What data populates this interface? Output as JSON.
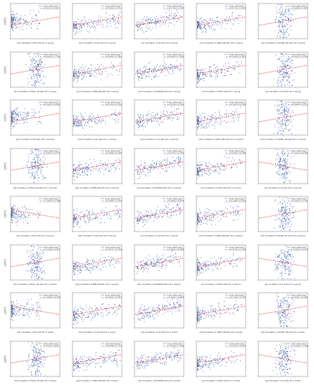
{
  "figure": {
    "legend_scatter": "•",
    "legend_line": "Linear relationship",
    "point_color": "#2b4a9c",
    "fit_color": "#e23a3a"
  },
  "chart_data": [
    {
      "type": "scatter",
      "row": 0,
      "col": 0,
      "caption": "(a1) Correlation of PD with LST in spring",
      "ylabel": "LST/°C",
      "equation": "y=0.015x+21.2664"
    },
    {
      "type": "scatter",
      "row": 0,
      "col": 1,
      "caption": "(b1) Correlation of LPI with LST in spring",
      "ylabel": "",
      "equation": "y=0.0065x+21.879"
    },
    {
      "type": "scatter",
      "row": 0,
      "col": 2,
      "caption": "(c1) Correlation of LSI with LST in spring",
      "ylabel": "",
      "equation": "y=0.2714x+21.3997"
    },
    {
      "type": "scatter",
      "row": 0,
      "col": 3,
      "caption": "(d1) Correlation of AREA_MN with LST in spring",
      "ylabel": "",
      "equation": "y=0.0711x+22.2024"
    },
    {
      "type": "scatter",
      "row": 0,
      "col": 4,
      "caption": "(e1) Correlation of SHAPE_AM with LST in spring",
      "ylabel": "",
      "equation": "y=0.1890x+21.6847"
    },
    {
      "type": "scatter",
      "row": 1,
      "col": 0,
      "caption": "(f1) Correlation of FRAC_AM with LST in spring",
      "ylabel": "LST/°C",
      "equation": "y=8.9656x+11.7140"
    },
    {
      "type": "scatter",
      "row": 1,
      "col": 1,
      "caption": "(g1) Correlation of ENN_MN with LST in spring",
      "ylabel": "",
      "equation": "y=0.0045x+21.2914"
    },
    {
      "type": "scatter",
      "row": 1,
      "col": 2,
      "caption": "(h1) Correlation of DIVISION with LST in spring",
      "ylabel": "",
      "equation": "y=9.4892x+13.4362"
    },
    {
      "type": "scatter",
      "row": 1,
      "col": 3,
      "caption": "(i1) Correlation of SPLIT with LST in spring",
      "ylabel": "",
      "equation": "y=0.0056x+21.8871"
    },
    {
      "type": "scatter",
      "row": 1,
      "col": 4,
      "caption": "(j1) Correlation of AI with LST in spring",
      "ylabel": "",
      "equation": "y=0.0281x+19.1463"
    },
    {
      "type": "scatter",
      "row": 2,
      "col": 0,
      "caption": "(a2) Correlation of PD with LST in summer",
      "ylabel": "LST/°C",
      "equation": "y=0.0005x+36.4583"
    },
    {
      "type": "scatter",
      "row": 2,
      "col": 1,
      "caption": "(b2) Correlation of LPI with LST in summer",
      "ylabel": "",
      "equation": "y=0.0141x+35.3302"
    },
    {
      "type": "scatter",
      "row": 2,
      "col": 2,
      "caption": "(c2) Correlation of LSI with LST in summer",
      "ylabel": "",
      "equation": "y=0.2919x+35.1614"
    },
    {
      "type": "scatter",
      "row": 2,
      "col": 3,
      "caption": "(d2) Correlation of AREA_MN with LST in summer",
      "ylabel": "",
      "equation": "y=0.1067x+36.3285"
    },
    {
      "type": "scatter",
      "row": 2,
      "col": 4,
      "caption": "(e2) Correlation of SHAPE_AM with LST in summer",
      "ylabel": "",
      "equation": "y=0.2944x+35.6711"
    },
    {
      "type": "scatter",
      "row": 3,
      "col": 0,
      "caption": "(f2) Correlation of FRAC_AM with LST in summer",
      "ylabel": "LST/°C",
      "equation": "y=9.2647x+26.9274"
    },
    {
      "type": "scatter",
      "row": 3,
      "col": 1,
      "caption": "(g2) Correlation of ENN_MN with LST in summer",
      "ylabel": "",
      "equation": "y=0.0098x+35.1945"
    },
    {
      "type": "scatter",
      "row": 3,
      "col": 2,
      "caption": "(h2) Correlation of DIVISION with LST in summer",
      "ylabel": "",
      "equation": "y=5.6772x+31.2475"
    },
    {
      "type": "scatter",
      "row": 3,
      "col": 3,
      "caption": "(i2) Correlation of SPLIT with LST in summer",
      "ylabel": "",
      "equation": "y=0.0054x+36.1885"
    },
    {
      "type": "scatter",
      "row": 3,
      "col": 4,
      "caption": "(j2) Correlation of AI with LST in summer",
      "ylabel": "",
      "equation": "y=-0.0214x+38.2941"
    },
    {
      "type": "scatter",
      "row": 4,
      "col": 0,
      "caption": "(a3) Correlation of PD with LST in autumn",
      "ylabel": "LST/°C",
      "equation": "y=-0.0004x+23.3690"
    },
    {
      "type": "scatter",
      "row": 4,
      "col": 1,
      "caption": "(b3) Correlation of LPI with LST in autumn",
      "ylabel": "",
      "equation": "y=0.0094x+22.2401"
    },
    {
      "type": "scatter",
      "row": 4,
      "col": 2,
      "caption": "(c3) Correlation of LSI with LST in autumn",
      "ylabel": "",
      "equation": "y=0.5806x+20.8374"
    },
    {
      "type": "scatter",
      "row": 4,
      "col": 3,
      "caption": "(d3) Correlation of AREA_MN with LST in autumn",
      "ylabel": "",
      "equation": "y=0.1446x+22.6181"
    },
    {
      "type": "scatter",
      "row": 4,
      "col": 4,
      "caption": "(e3) Correlation of SHAPE_AM with LST in autumn",
      "ylabel": "",
      "equation": "y=0.2942x+22.1745"
    },
    {
      "type": "scatter",
      "row": 5,
      "col": 0,
      "caption": "(f3) Correlation of FRAC_AM with LST in autumn",
      "ylabel": "LST/°C",
      "equation": "y=13.9150x+9.0971"
    },
    {
      "type": "scatter",
      "row": 5,
      "col": 1,
      "caption": "(g3) Correlation of ENN_MN with LST in autumn",
      "ylabel": "",
      "equation": "y=0.0077x+22.2263"
    },
    {
      "type": "scatter",
      "row": 5,
      "col": 2,
      "caption": "(h3) Correlation of DIVISION with LST in autumn",
      "ylabel": "",
      "equation": "y=5.8961x+18.4858"
    },
    {
      "type": "scatter",
      "row": 5,
      "col": 3,
      "caption": "(i3) Correlation of SPLIT with LST in autumn",
      "ylabel": "",
      "equation": "y=0.0070x+22.7990"
    },
    {
      "type": "scatter",
      "row": 5,
      "col": 4,
      "caption": "(j3) Correlation of AI with LST in autumn",
      "ylabel": "",
      "equation": "y=-0.0292x+25.1847"
    },
    {
      "type": "scatter",
      "row": 6,
      "col": 0,
      "caption": "(a4) Correlation of PD with LST in winter",
      "ylabel": "LST/°C",
      "equation": "y=-0.0006x+16.2042"
    },
    {
      "type": "scatter",
      "row": 6,
      "col": 1,
      "caption": "(b4) Correlation of LPI with LST in winter",
      "ylabel": "",
      "equation": "y=0.0062x+15.4213"
    },
    {
      "type": "scatter",
      "row": 6,
      "col": 2,
      "caption": "(c4) Correlation of LSI with LST in winter",
      "ylabel": "",
      "equation": "y=0.3164x+14.8673"
    },
    {
      "type": "scatter",
      "row": 6,
      "col": 3,
      "caption": "(d4) Correlation of AREA_MN with LST in winter",
      "ylabel": "",
      "equation": "y=0.1138x+15.9478"
    },
    {
      "type": "scatter",
      "row": 6,
      "col": 4,
      "caption": "(e4) Correlation of SHAPE_AM with LST in winter",
      "ylabel": "",
      "equation": "y=0.2495x+15.5080"
    },
    {
      "type": "scatter",
      "row": 7,
      "col": 0,
      "caption": "(f4) Correlation of FRAC_AM with LST in winter",
      "ylabel": "LST/°C",
      "equation": "y=9.0163x+5.8463"
    },
    {
      "type": "scatter",
      "row": 7,
      "col": 1,
      "caption": "(g4) Correlation of ENN_MN with LST in winter",
      "ylabel": "",
      "equation": "y=0.0048x+15.1775"
    },
    {
      "type": "scatter",
      "row": 7,
      "col": 2,
      "caption": "(h4) Correlation of DIVISION with LST in winter",
      "ylabel": "",
      "equation": "y=4.2916x+12.3509"
    },
    {
      "type": "scatter",
      "row": 7,
      "col": 3,
      "caption": "(i4) Correlation of SPLIT with LST in winter",
      "ylabel": "",
      "equation": "y=0.0047x+16.0554"
    },
    {
      "type": "scatter",
      "row": 7,
      "col": 4,
      "caption": "(j4) Correlation of AI with LST in winter",
      "ylabel": "",
      "equation": "y=-0.0186x+17.5630"
    }
  ]
}
